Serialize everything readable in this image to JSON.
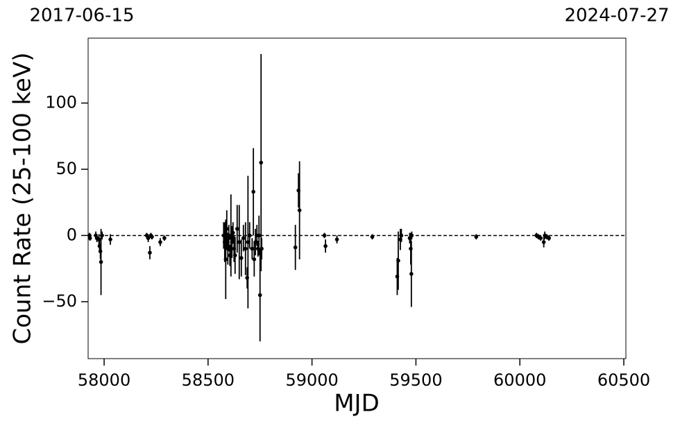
{
  "chart_data": {
    "type": "errorbar-scatter",
    "top_labels": [
      "2017-06-15",
      "2024-07-27"
    ],
    "xlabel": "MJD",
    "ylabel": "Count Rate (25-100 keV)",
    "xlim": [
      57923,
      60510
    ],
    "ylim": [
      -93,
      149
    ],
    "xticks": [
      58000,
      58500,
      59000,
      59500,
      60000,
      60500
    ],
    "yticks": [
      {
        "value": -50,
        "label": "−50"
      },
      0,
      50,
      100
    ],
    "hline": 0,
    "color": "#000000",
    "series": [
      {
        "x": [
          57930,
          57932,
          57960,
          57965,
          57975,
          57978,
          57982,
          57985,
          57990,
          58030,
          58205,
          58212,
          58220,
          58225,
          58230,
          58270,
          58290,
          58575,
          58580,
          58585,
          58590,
          58595,
          58600,
          58605,
          58610,
          58615,
          58620,
          58625,
          58630,
          58640,
          58650,
          58660,
          58670,
          58680,
          58688,
          58692,
          58700,
          58712,
          58718,
          58722,
          58728,
          58735,
          58740,
          58745,
          58750,
          58755,
          58758,
          58920,
          58935,
          58940,
          59060,
          59065,
          59120,
          59290,
          59410,
          59415,
          59425,
          59430,
          59470,
          59475,
          59478,
          59480,
          59790,
          60080,
          60090,
          60100,
          60115,
          60120,
          60130,
          60140
        ],
        "values": [
          0,
          -2,
          0,
          -2,
          -3,
          -8,
          -12,
          -20,
          0,
          -3,
          0,
          -2,
          -13,
          0,
          -1,
          -5,
          -2,
          0,
          -5,
          -18,
          5,
          -10,
          -2,
          -15,
          0,
          -5,
          2,
          -10,
          -15,
          5,
          -5,
          -17,
          -2,
          -10,
          -32,
          -5,
          0,
          -10,
          33,
          -18,
          -5,
          0,
          -10,
          0,
          -45,
          55,
          -10,
          -9,
          34,
          19,
          0,
          -8,
          -3,
          -1,
          -31,
          -19,
          -3,
          0,
          -2,
          -10,
          -29,
          0,
          -1,
          0,
          -1,
          -2,
          -5,
          0,
          -1,
          -2
        ],
        "errors": [
          2,
          2,
          3,
          3,
          4,
          5,
          6,
          25,
          3,
          4,
          2,
          3,
          5,
          2,
          2,
          3,
          2,
          10,
          15,
          30,
          14,
          12,
          10,
          8,
          31,
          12,
          8,
          10,
          14,
          18,
          28,
          14,
          10,
          20,
          8,
          50,
          10,
          8,
          33,
          13,
          10,
          8,
          6,
          15,
          35,
          82,
          8,
          17,
          13,
          37,
          2,
          5,
          3,
          2,
          14,
          22,
          8,
          5,
          4,
          12,
          25,
          3,
          2,
          2,
          2,
          2,
          4,
          3,
          2,
          2
        ]
      }
    ]
  }
}
